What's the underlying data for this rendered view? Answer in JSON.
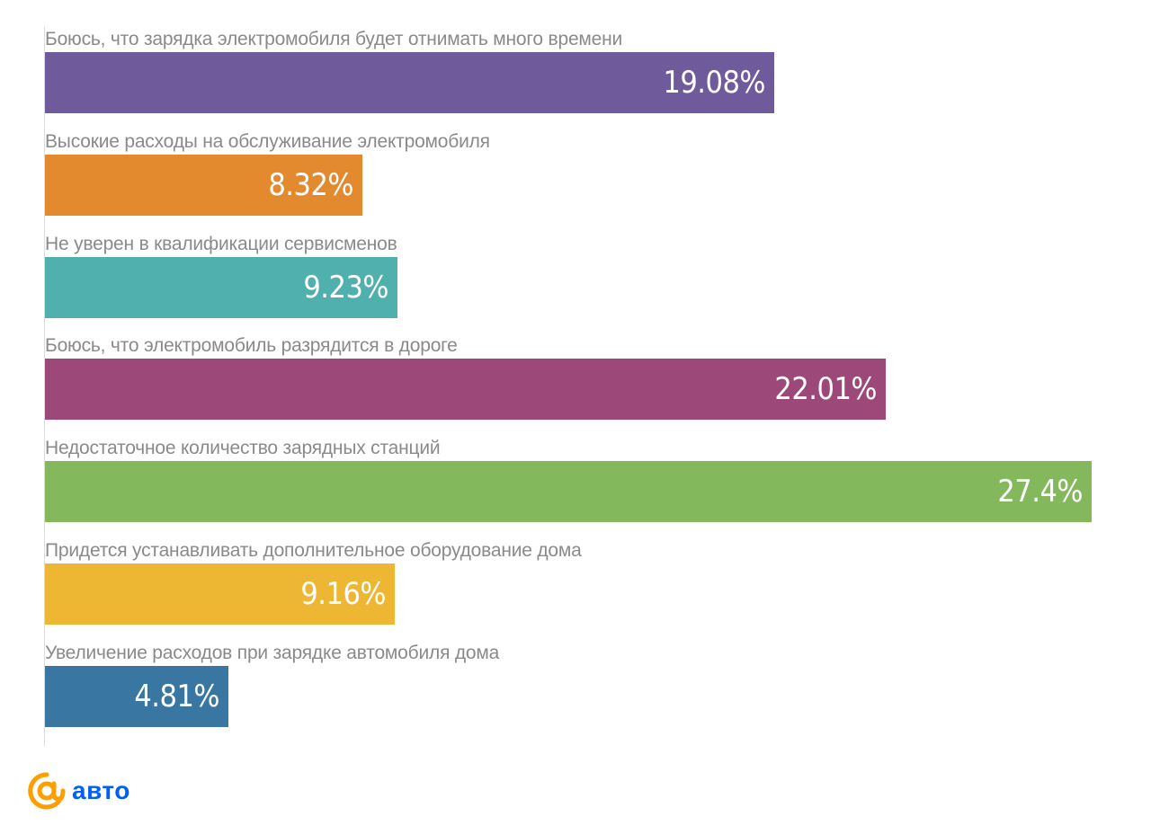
{
  "chart_data": {
    "type": "bar",
    "orientation": "horizontal",
    "categories": [
      "Боюсь, что зарядка электромобиля будет отнимать много времени",
      "Высокие расходы на обслуживание электромобиля",
      "Не уверен в квалификации сервисменов",
      "Боюсь, что электромобиль разрядится в дороге",
      "Недостаточное количество зарядных станций",
      "Придется устанавливать дополнительное оборудование дома",
      "Увеличение расходов при зарядке автомобиля дома"
    ],
    "values": [
      19.08,
      8.32,
      9.23,
      22.01,
      27.4,
      9.16,
      4.81
    ],
    "value_labels": [
      "19.08%",
      "8.32%",
      "9.23%",
      "22.01%",
      "27.4%",
      "9.16%",
      "4.81%"
    ],
    "colors": [
      "#6f5a9c",
      "#e3892e",
      "#4fb0ae",
      "#9c4878",
      "#84b85c",
      "#edb633",
      "#3977a2"
    ],
    "xlim": [
      0,
      27.4
    ],
    "grid": false,
    "legend": "none"
  },
  "logo": {
    "icon": "at-sign-icon",
    "text": "авто",
    "icon_color": "#ff9e00",
    "text_color": "#005ff9"
  }
}
